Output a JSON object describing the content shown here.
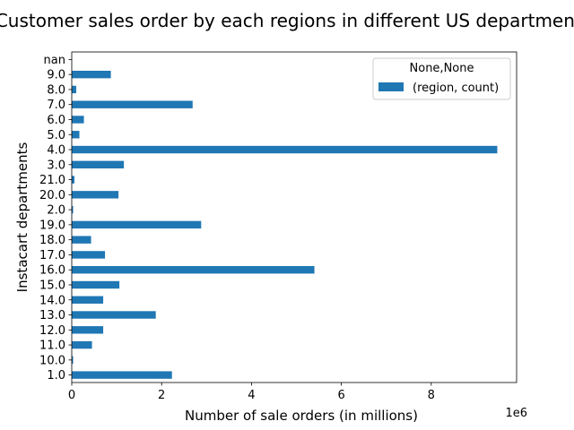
{
  "chart_data": {
    "type": "bar",
    "orientation": "horizontal",
    "title": "Customer sales order by each regions in different US departments",
    "xlabel": "Number of sale orders (in millions)",
    "ylabel": "Instacart departments",
    "x_offset_text": "1e6",
    "xlim": [
      0,
      9900000
    ],
    "xticks": [
      {
        "value": 0,
        "label": "0"
      },
      {
        "value": 2000000,
        "label": "2"
      },
      {
        "value": 4000000,
        "label": "4"
      },
      {
        "value": 6000000,
        "label": "6"
      },
      {
        "value": 8000000,
        "label": "8"
      }
    ],
    "categories": [
      "1.0",
      "10.0",
      "11.0",
      "12.0",
      "13.0",
      "14.0",
      "15.0",
      "16.0",
      "17.0",
      "18.0",
      "19.0",
      "2.0",
      "20.0",
      "21.0",
      "3.0",
      "4.0",
      "5.0",
      "6.0",
      "7.0",
      "8.0",
      "9.0",
      "nan"
    ],
    "series": [
      {
        "name": "(region, count)",
        "color": "#1f77b4",
        "values": [
          2230000,
          30000,
          450000,
          700000,
          1870000,
          700000,
          1060000,
          5400000,
          740000,
          430000,
          2880000,
          30000,
          1040000,
          60000,
          1160000,
          9470000,
          170000,
          270000,
          2690000,
          100000,
          870000,
          0
        ]
      }
    ],
    "legend": {
      "title": "None,None",
      "placement": "top-right"
    },
    "grid": false
  }
}
